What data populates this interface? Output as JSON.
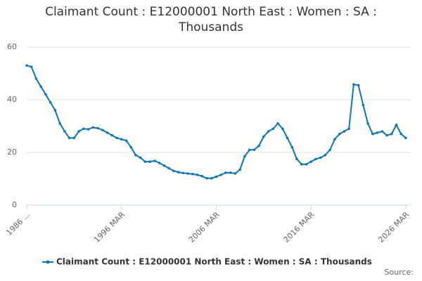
{
  "chart_data": {
    "type": "line",
    "title": "Claimant Count : E12000001 North East : Women : SA : Thousands",
    "categories": [
      "1986 ...",
      null,
      null,
      null,
      null,
      null,
      null,
      null,
      null,
      null,
      null,
      null,
      null,
      null,
      null,
      null,
      null,
      null,
      null,
      null,
      "1996 MAR",
      null,
      null,
      null,
      null,
      null,
      null,
      null,
      null,
      null,
      null,
      null,
      null,
      null,
      null,
      null,
      null,
      null,
      null,
      null,
      "2006 MAR",
      null,
      null,
      null,
      null,
      null,
      null,
      null,
      null,
      null,
      null,
      null,
      null,
      null,
      null,
      null,
      null,
      null,
      null,
      null,
      "2016 MAR",
      null,
      null,
      null,
      null,
      null,
      null,
      null,
      null,
      null,
      null,
      null,
      null,
      null,
      null,
      null,
      null,
      null,
      null,
      null,
      "2026 MAR"
    ],
    "series": [
      {
        "name": "Claimant Count : E12000001 North East : Women : SA : Thousands",
        "color": "#0e76b3",
        "values": [
          53,
          52.5,
          48,
          45,
          42,
          39,
          36,
          31,
          28,
          25.5,
          25.5,
          28,
          29,
          28.8,
          29.5,
          29.2,
          28.5,
          27.5,
          26.5,
          25.5,
          25,
          24.5,
          22,
          19,
          18,
          16.5,
          16.5,
          16.8,
          16,
          15,
          14,
          13,
          12.5,
          12.2,
          12,
          11.8,
          11.5,
          11,
          10.2,
          10.2,
          10.8,
          11.5,
          12.3,
          12.3,
          12,
          13.5,
          18.5,
          21,
          21,
          22.5,
          26,
          28,
          29,
          31,
          29,
          25.5,
          22,
          17.5,
          15.5,
          15.5,
          16.5,
          17.5,
          18,
          19,
          21,
          25,
          27,
          28,
          29,
          45.8,
          45.5,
          38,
          31,
          27,
          27.5,
          28,
          26.5,
          27,
          30.5,
          27,
          25.5
        ]
      }
    ],
    "ylim": [
      0,
      60
    ],
    "yticks": [
      0,
      20,
      40,
      60
    ],
    "grid": true,
    "source": "Source:"
  }
}
